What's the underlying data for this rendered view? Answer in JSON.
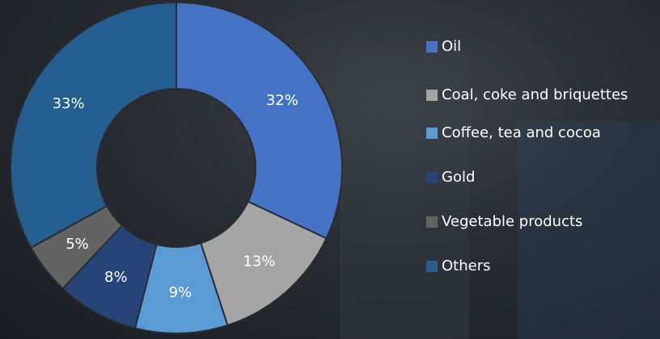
{
  "chart_data": {
    "type": "donut",
    "categories": [
      "Oil",
      "Coal, coke and briquettes",
      "Coffee, tea and cocoa",
      "Gold",
      "Vegetable products",
      "Others"
    ],
    "values": [
      32,
      13,
      9,
      8,
      5,
      33
    ],
    "value_labels": [
      "32%",
      "13%",
      "9%",
      "8%",
      "5%",
      "33%"
    ],
    "colors": [
      "#4472c4",
      "#a5a5a5",
      "#5b9bd5",
      "#264478",
      "#636363",
      "#255e91"
    ],
    "legend": "right"
  }
}
